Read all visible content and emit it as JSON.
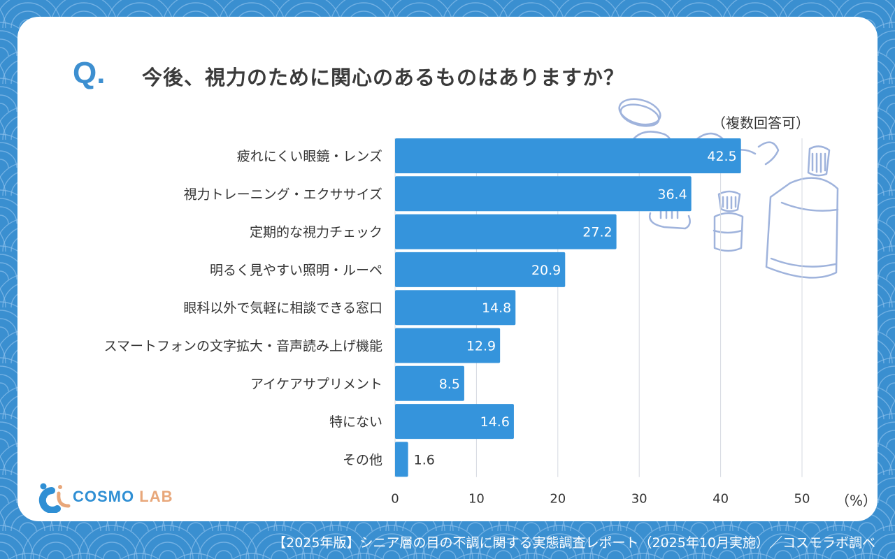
{
  "header": {
    "q_label": "Q",
    "q_dot": ".",
    "title": "今後、視力のために関心のあるものはありますか？",
    "note": "（複数回答可）"
  },
  "chart_data": {
    "type": "bar",
    "orientation": "horizontal",
    "title": "今後、視力のために関心のあるものはありますか？",
    "categories": [
      "疲れにくい眼鏡・レンズ",
      "視力トレーニング・エクササイズ",
      "定期的な視力チェック",
      "明るく見やすい照明・ルーペ",
      "眼科以外で気軽に相談できる窓口",
      "スマートフォンの文字拡大・音声読み上げ機能",
      "アイケアサプリメント",
      "特にない",
      "その他"
    ],
    "values": [
      42.5,
      36.4,
      27.2,
      20.9,
      14.8,
      12.9,
      8.5,
      14.6,
      1.6
    ],
    "value_labels": [
      "42.5",
      "36.4",
      "27.2",
      "20.9",
      "14.8",
      "12.9",
      "8.5",
      "14.6",
      "1.6"
    ],
    "xlim": [
      0,
      50
    ],
    "xticks": [
      0,
      10,
      20,
      30,
      40,
      50
    ],
    "xtick_labels": [
      "0",
      "10",
      "20",
      "30",
      "40",
      "50"
    ],
    "xlabel": "（%）",
    "ylabel": "",
    "grid": true,
    "bar_color": "#3594dc",
    "grid_color": "#d5d9e0"
  },
  "logo": {
    "cosmo": "COSMO",
    "lab": "LAB"
  },
  "footer": "【2025年版】シニア層の目の不調に関する実態調査レポート（2025年10月実施）／コスモラボ調べ",
  "colors": {
    "background": "#3a8fd0",
    "accent": "#3d8fd0",
    "text": "#3a3a3a"
  }
}
